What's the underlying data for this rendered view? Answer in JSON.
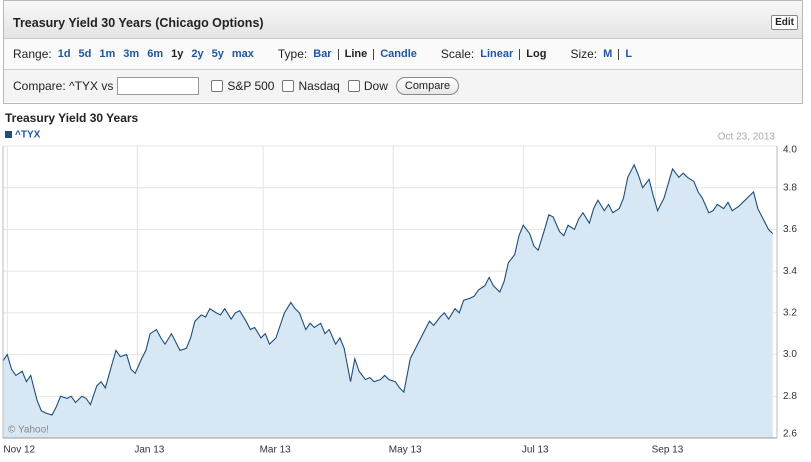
{
  "header": {
    "title": "Treasury Yield 30 Years (Chicago Options)",
    "edit": "Edit"
  },
  "controls": {
    "range_label": "Range:",
    "ranges": [
      "1d",
      "5d",
      "1m",
      "3m",
      "6m",
      "1y",
      "2y",
      "5y",
      "max"
    ],
    "selected_range": 5,
    "type_label": "Type:",
    "types": [
      "Bar",
      "Line",
      "Candle"
    ],
    "selected_type": 1,
    "scale_label": "Scale:",
    "scales": [
      "Linear",
      "Log"
    ],
    "selected_scale": 1,
    "size_label": "Size:",
    "sizes": [
      "M",
      "L"
    ],
    "compare_label": "Compare: ^TYX vs",
    "compare_options": [
      "S&P 500",
      "Nasdaq",
      "Dow"
    ],
    "compare_button": "Compare"
  },
  "chart_data": {
    "type": "line",
    "title": "Treasury Yield 30 Years",
    "date": "Oct 23, 2013",
    "watermark": "© Yahoo!",
    "x": [
      -2,
      0,
      2,
      4,
      7,
      9,
      11,
      14,
      16,
      18,
      21,
      23,
      25,
      28,
      30,
      32,
      35,
      37,
      39,
      42,
      44,
      46,
      49,
      51,
      53,
      56,
      58,
      60,
      63,
      65,
      67,
      70,
      72,
      74,
      77,
      79,
      81,
      84,
      86,
      88,
      91,
      93,
      95,
      98,
      100,
      102,
      105,
      107,
      109,
      112,
      114,
      116,
      119,
      121,
      123,
      126,
      128,
      130,
      133,
      135,
      137,
      140,
      142,
      144,
      147,
      149,
      151,
      154,
      156,
      158,
      161,
      163,
      165,
      168,
      170,
      172,
      175,
      177,
      179,
      182,
      184,
      186,
      189,
      191,
      193,
      196,
      198,
      200,
      203,
      205,
      207,
      210,
      212,
      214,
      217,
      219,
      221,
      224,
      226,
      228,
      231,
      233,
      235,
      238,
      240,
      242,
      245,
      247,
      249,
      252,
      254,
      256,
      259,
      261,
      263,
      266,
      268,
      270,
      273,
      275,
      277,
      280,
      282,
      284,
      287,
      289,
      291,
      294,
      296,
      298,
      301,
      303,
      305,
      308,
      310,
      312,
      315,
      317,
      319,
      322,
      324,
      326,
      329,
      331,
      333,
      336,
      338,
      340,
      343,
      345,
      347,
      350,
      352,
      354,
      357,
      359
    ],
    "series": [
      {
        "name": "^TYX",
        "color": "#1d4f7c",
        "fill": "#d7e7f3",
        "values": [
          2.97,
          3.0,
          2.93,
          2.9,
          2.92,
          2.87,
          2.9,
          2.78,
          2.73,
          2.72,
          2.71,
          2.75,
          2.8,
          2.79,
          2.8,
          2.77,
          2.8,
          2.79,
          2.76,
          2.85,
          2.87,
          2.84,
          2.95,
          3.02,
          2.99,
          3.0,
          2.93,
          2.91,
          2.98,
          3.02,
          3.1,
          3.12,
          3.08,
          3.05,
          3.1,
          3.06,
          3.02,
          3.03,
          3.08,
          3.16,
          3.19,
          3.18,
          3.22,
          3.2,
          3.19,
          3.22,
          3.17,
          3.2,
          3.21,
          3.16,
          3.12,
          3.13,
          3.08,
          3.1,
          3.05,
          3.08,
          3.14,
          3.2,
          3.25,
          3.22,
          3.2,
          3.12,
          3.15,
          3.13,
          3.15,
          3.1,
          3.12,
          3.05,
          3.08,
          3.03,
          2.87,
          2.98,
          2.92,
          2.88,
          2.89,
          2.87,
          2.88,
          2.9,
          2.88,
          2.87,
          2.84,
          2.82,
          2.98,
          3.02,
          3.06,
          3.12,
          3.16,
          3.14,
          3.18,
          3.2,
          3.17,
          3.22,
          3.2,
          3.26,
          3.27,
          3.28,
          3.31,
          3.33,
          3.37,
          3.33,
          3.3,
          3.35,
          3.44,
          3.48,
          3.57,
          3.62,
          3.58,
          3.52,
          3.5,
          3.6,
          3.67,
          3.66,
          3.59,
          3.57,
          3.62,
          3.6,
          3.65,
          3.68,
          3.63,
          3.7,
          3.74,
          3.69,
          3.72,
          3.68,
          3.7,
          3.75,
          3.85,
          3.91,
          3.86,
          3.8,
          3.84,
          3.76,
          3.69,
          3.75,
          3.82,
          3.89,
          3.85,
          3.87,
          3.85,
          3.83,
          3.78,
          3.75,
          3.68,
          3.69,
          3.72,
          3.7,
          3.73,
          3.69,
          3.71,
          3.73,
          3.75,
          3.78,
          3.7,
          3.66,
          3.6,
          3.58
        ]
      }
    ],
    "xlim": [
      -2,
      361
    ],
    "xticks": [
      {
        "value": 0,
        "label": "Nov 12"
      },
      {
        "value": 61,
        "label": "Jan 13"
      },
      {
        "value": 120,
        "label": "Mar 13"
      },
      {
        "value": 181,
        "label": "May 13"
      },
      {
        "value": 242,
        "label": "Jul 13"
      },
      {
        "value": 304,
        "label": "Sep 13"
      }
    ],
    "ylim": [
      2.6,
      4.0
    ],
    "yticks": [
      2.6,
      2.8,
      {
        "value": 3,
        "label": "3.0"
      },
      3.2,
      3.4,
      3.6,
      3.8,
      {
        "value": 4,
        "label": "4.0"
      }
    ],
    "grid": true
  }
}
